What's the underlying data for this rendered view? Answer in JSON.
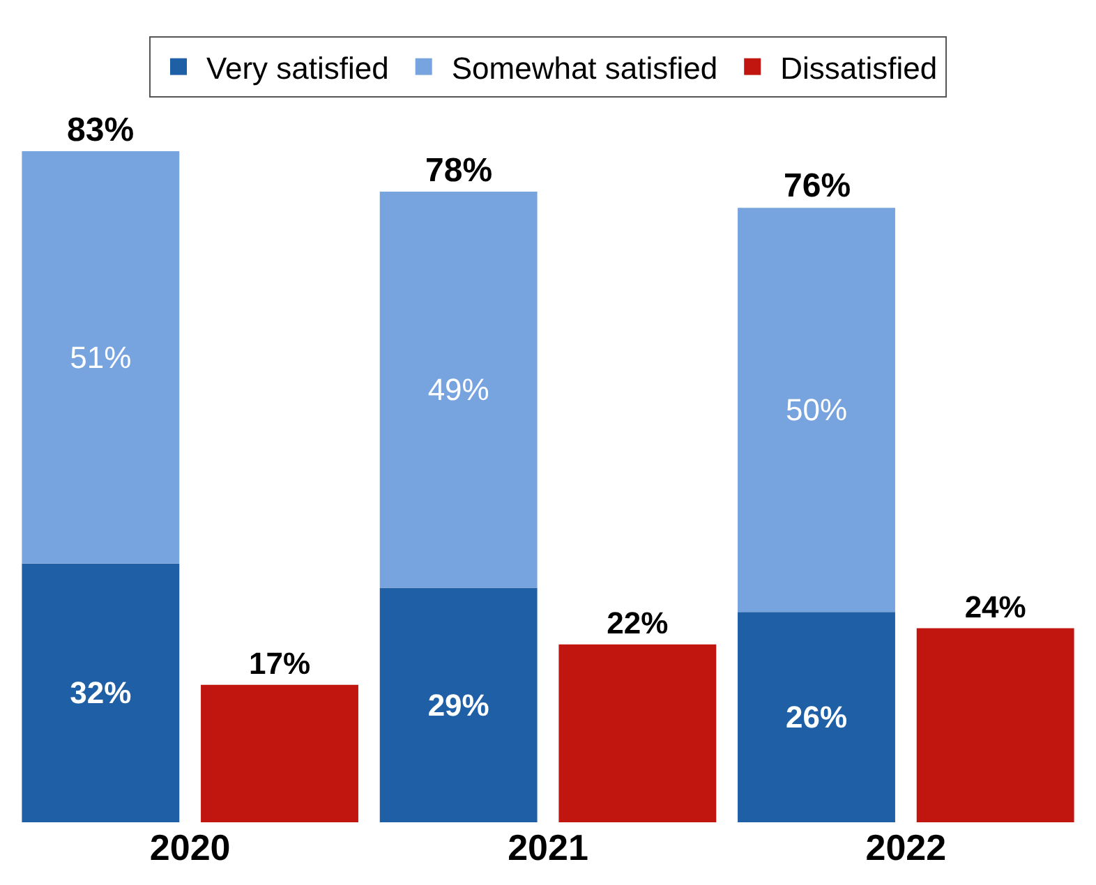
{
  "chart_data": {
    "type": "bar",
    "stacked": true,
    "legend": "top",
    "categories": [
      "2020",
      null,
      "2021",
      null,
      "2022",
      null
    ],
    "series": [
      {
        "name": "Very satisfied",
        "color": "#1f5fa6",
        "values": [
          32,
          null,
          29,
          null,
          26,
          null
        ],
        "value_labels": [
          "32%",
          null,
          "29%",
          null,
          "26%",
          null
        ]
      },
      {
        "name": "Somewhat satisfied",
        "color": "#77a3de",
        "values": [
          51,
          null,
          49,
          null,
          50,
          null
        ],
        "value_labels": [
          "51%",
          null,
          "49%",
          null,
          "50%",
          null
        ]
      },
      {
        "name": "Dissatisfied",
        "color": "#c0160f",
        "values": [
          null,
          17,
          null,
          22,
          null,
          24
        ],
        "value_labels": [
          null,
          "17%",
          null,
          "22%",
          null,
          "24%"
        ]
      }
    ],
    "totals": [
      "83%",
      null,
      "78%",
      null,
      "76%",
      null
    ]
  }
}
